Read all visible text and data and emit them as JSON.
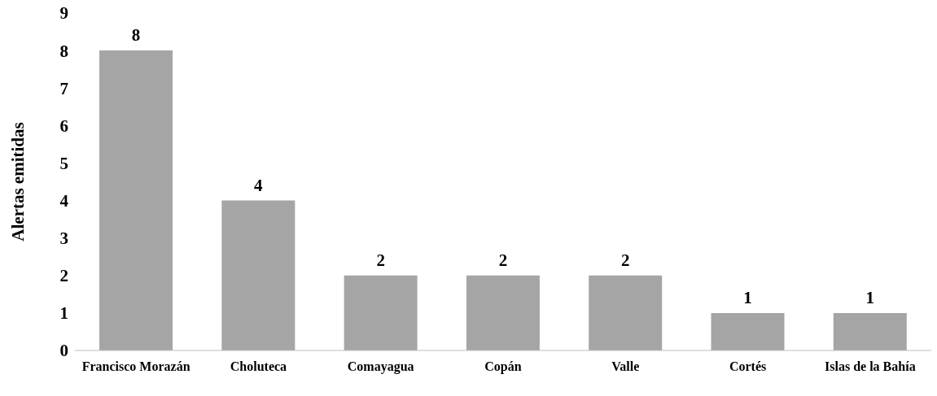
{
  "chart_data": {
    "type": "bar",
    "ylabel": "Alertas emitidas",
    "categories": [
      "Francisco Morazán",
      "Choluteca",
      "Comayagua",
      "Copán",
      "Valle",
      "Cortés",
      "Islas de la Bahía"
    ],
    "values": [
      8,
      4,
      2,
      2,
      2,
      1,
      1
    ],
    "color": "#a5a5a5",
    "ylim": [
      0,
      9
    ],
    "yticks": [
      0,
      1,
      2,
      3,
      4,
      5,
      6,
      7,
      8,
      9
    ],
    "grid": false,
    "data_labels": true
  }
}
